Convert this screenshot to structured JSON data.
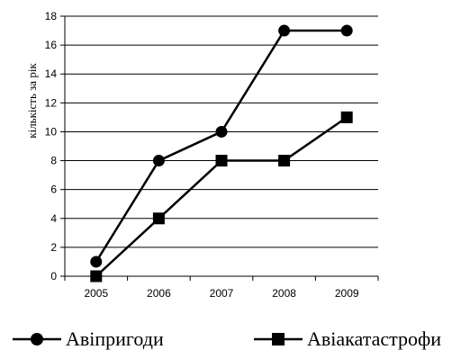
{
  "chart_data": {
    "type": "line",
    "x": [
      "2005",
      "2006",
      "2007",
      "2008",
      "2009"
    ],
    "series": [
      {
        "name": "Авіпригоди",
        "values": [
          1,
          8,
          10,
          17,
          17
        ],
        "marker": "circle"
      },
      {
        "name": "Авіакатастрофи",
        "values": [
          0,
          4,
          8,
          8,
          11
        ],
        "marker": "square"
      }
    ],
    "ylabel": "кількість за рік",
    "xlabel": "",
    "title": "",
    "ylim": [
      0,
      18
    ],
    "yticks": [
      "0",
      "2",
      "4",
      "6",
      "8",
      "10",
      "12",
      "14",
      "16",
      "18"
    ],
    "grid": "horizontal",
    "legend": "bottom",
    "line_color": "#000000",
    "marker_color": "#000000"
  }
}
